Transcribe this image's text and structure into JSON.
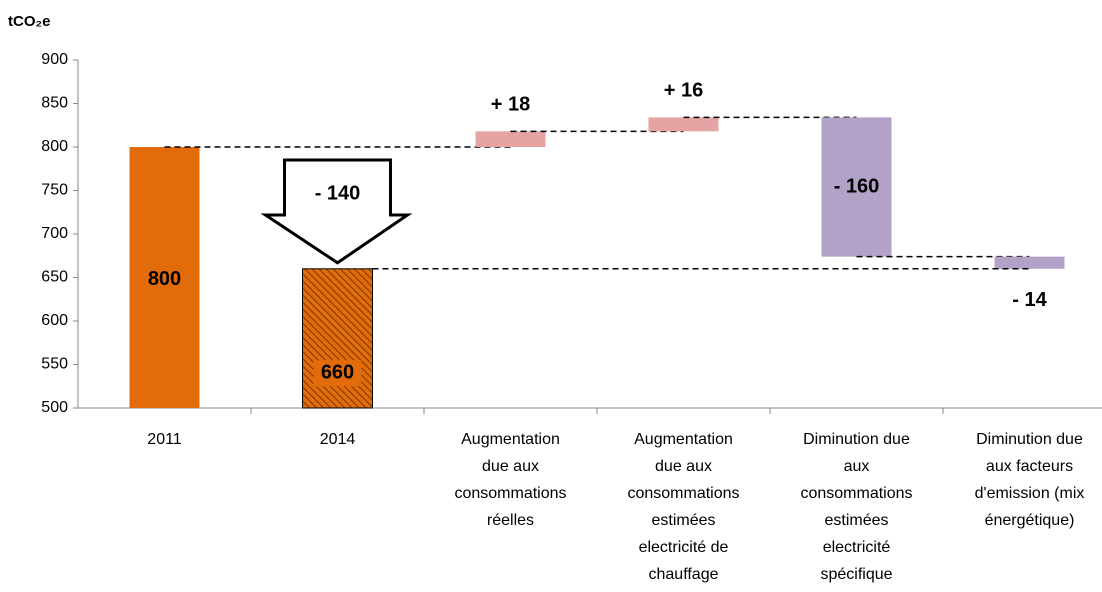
{
  "chart_data": {
    "type": "waterfall",
    "y_label": "tCO₂e",
    "categories": [
      "2011",
      "2014",
      "Augmentation due aux consommations réelles",
      "Augmentation due aux consommations estimées electricité de chauffage",
      "Diminution due aux consommations estimées electricité spécifique",
      "Diminution due aux facteurs d'emission (mix énergétique)"
    ],
    "values": [
      800,
      660,
      18,
      16,
      -160,
      -14
    ],
    "value_labels": [
      "800",
      "660",
      "+ 18",
      "+ 16",
      "- 160",
      "- 14"
    ],
    "measure": [
      "total",
      "total",
      "relative",
      "relative",
      "relative",
      "relative"
    ],
    "colors": [
      "#e36c0a",
      "#e36c0a",
      "#e6a3a3",
      "#e6a3a3",
      "#b3a2c7",
      "#b3a2c7"
    ],
    "hatched": [
      false,
      true,
      false,
      false,
      false,
      false
    ],
    "annotations": [
      {
        "value": -140,
        "label": "- 140"
      }
    ],
    "ylim": [
      500,
      900
    ],
    "yticks": [
      500,
      550,
      600,
      650,
      700,
      750,
      800,
      850,
      900
    ]
  }
}
